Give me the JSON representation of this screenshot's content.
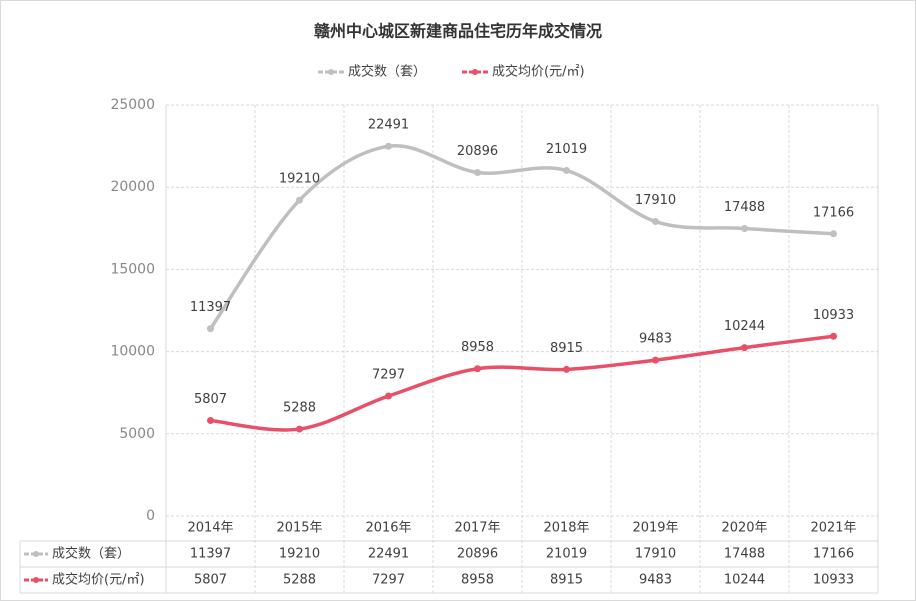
{
  "chart_data": {
    "type": "line",
    "title": "赣州中心城区新建商品住宅历年成交情况",
    "categories": [
      "2014年",
      "2015年",
      "2016年",
      "2017年",
      "2018年",
      "2019年",
      "2020年",
      "2021年"
    ],
    "series": [
      {
        "name": "成交数（套）",
        "color": "#bfbfbf",
        "values": [
          11397,
          19210,
          22491,
          20896,
          21019,
          17910,
          17488,
          17166
        ]
      },
      {
        "name": "成交均价(元/㎡)",
        "color": "#e8506a",
        "values": [
          5807,
          5288,
          7297,
          8958,
          8915,
          9483,
          10244,
          10933
        ]
      }
    ],
    "ylim": [
      0,
      25000
    ],
    "yticks": [
      0,
      5000,
      10000,
      15000,
      20000,
      25000
    ],
    "grid": true,
    "legend": "top",
    "data_table": true
  }
}
